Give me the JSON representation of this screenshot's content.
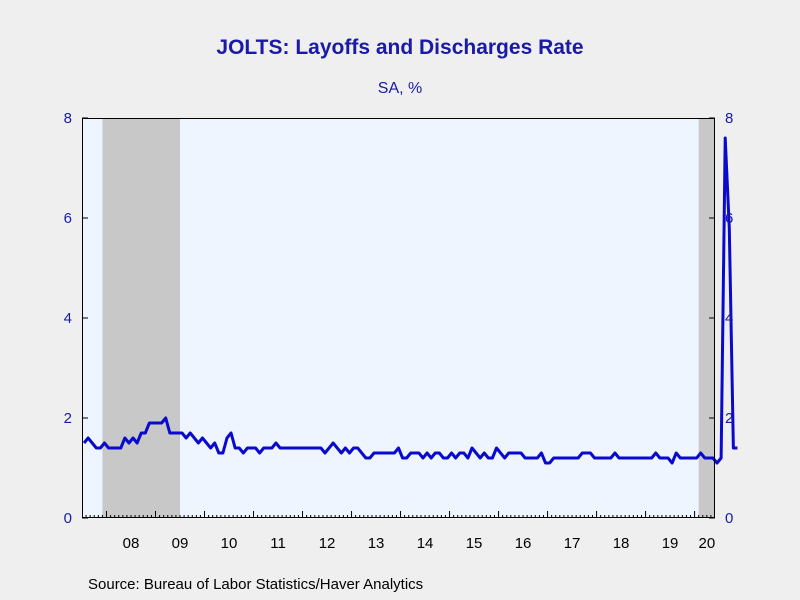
{
  "title": "JOLTS: Layoffs and Discharges Rate",
  "subtitle": "SA, %",
  "source": "Source:  Bureau of Labor Statistics/Haver Analytics",
  "colors": {
    "series": "#0a0acc",
    "text": "#1a1aa6",
    "plot_bg": "#eef5ff",
    "recession": "#c8c8c8",
    "page_bg": "#efefef"
  },
  "chart_data": {
    "type": "line",
    "xlabel": "",
    "ylabel": "",
    "ylim": [
      0,
      8
    ],
    "xlim": [
      "2007-07",
      "2020-06"
    ],
    "y_ticks": [
      0,
      2,
      4,
      6,
      8
    ],
    "y_tick_labels": [
      "0",
      "2",
      "4",
      "6",
      "8"
    ],
    "y_axis_both_sides": true,
    "grid": false,
    "x_ticks": [
      {
        "label": "08",
        "year": 2008
      },
      {
        "label": "09",
        "year": 2009
      },
      {
        "label": "10",
        "year": 2010
      },
      {
        "label": "11",
        "year": 2011
      },
      {
        "label": "12",
        "year": 2012
      },
      {
        "label": "13",
        "year": 2013
      },
      {
        "label": "14",
        "year": 2014
      },
      {
        "label": "15",
        "year": 2015
      },
      {
        "label": "16",
        "year": 2016
      },
      {
        "label": "17",
        "year": 2017
      },
      {
        "label": "18",
        "year": 2018
      },
      {
        "label": "19",
        "year": 2019
      },
      {
        "label": "20",
        "year": 2020
      }
    ],
    "recessions": [
      {
        "start": "2007-12",
        "end": "2009-06"
      },
      {
        "start": "2020-02",
        "end": "2020-06"
      }
    ],
    "series": [
      {
        "start": "2007-07",
        "frequency": "monthly",
        "values": [
          1.5,
          1.6,
          1.5,
          1.4,
          1.4,
          1.5,
          1.4,
          1.4,
          1.4,
          1.4,
          1.6,
          1.5,
          1.6,
          1.5,
          1.7,
          1.7,
          1.9,
          1.9,
          1.9,
          1.9,
          2.0,
          1.7,
          1.7,
          1.7,
          1.7,
          1.6,
          1.7,
          1.6,
          1.5,
          1.6,
          1.5,
          1.4,
          1.5,
          1.3,
          1.3,
          1.6,
          1.7,
          1.4,
          1.4,
          1.3,
          1.4,
          1.4,
          1.4,
          1.3,
          1.4,
          1.4,
          1.4,
          1.5,
          1.4,
          1.4,
          1.4,
          1.4,
          1.4,
          1.4,
          1.4,
          1.4,
          1.4,
          1.4,
          1.4,
          1.3,
          1.4,
          1.5,
          1.4,
          1.3,
          1.4,
          1.3,
          1.4,
          1.4,
          1.3,
          1.2,
          1.2,
          1.3,
          1.3,
          1.3,
          1.3,
          1.3,
          1.3,
          1.4,
          1.2,
          1.2,
          1.3,
          1.3,
          1.3,
          1.2,
          1.3,
          1.2,
          1.3,
          1.3,
          1.2,
          1.2,
          1.3,
          1.2,
          1.3,
          1.3,
          1.2,
          1.4,
          1.3,
          1.2,
          1.3,
          1.2,
          1.2,
          1.4,
          1.3,
          1.2,
          1.3,
          1.3,
          1.3,
          1.3,
          1.2,
          1.2,
          1.2,
          1.2,
          1.3,
          1.1,
          1.1,
          1.2,
          1.2,
          1.2,
          1.2,
          1.2,
          1.2,
          1.2,
          1.3,
          1.3,
          1.3,
          1.2,
          1.2,
          1.2,
          1.2,
          1.2,
          1.3,
          1.2,
          1.2,
          1.2,
          1.2,
          1.2,
          1.2,
          1.2,
          1.2,
          1.2,
          1.3,
          1.2,
          1.2,
          1.2,
          1.1,
          1.3,
          1.2,
          1.2,
          1.2,
          1.2,
          1.2,
          1.3,
          1.2,
          1.2,
          1.2,
          1.1,
          1.2,
          7.6,
          5.8,
          1.4,
          1.4
        ]
      }
    ]
  }
}
